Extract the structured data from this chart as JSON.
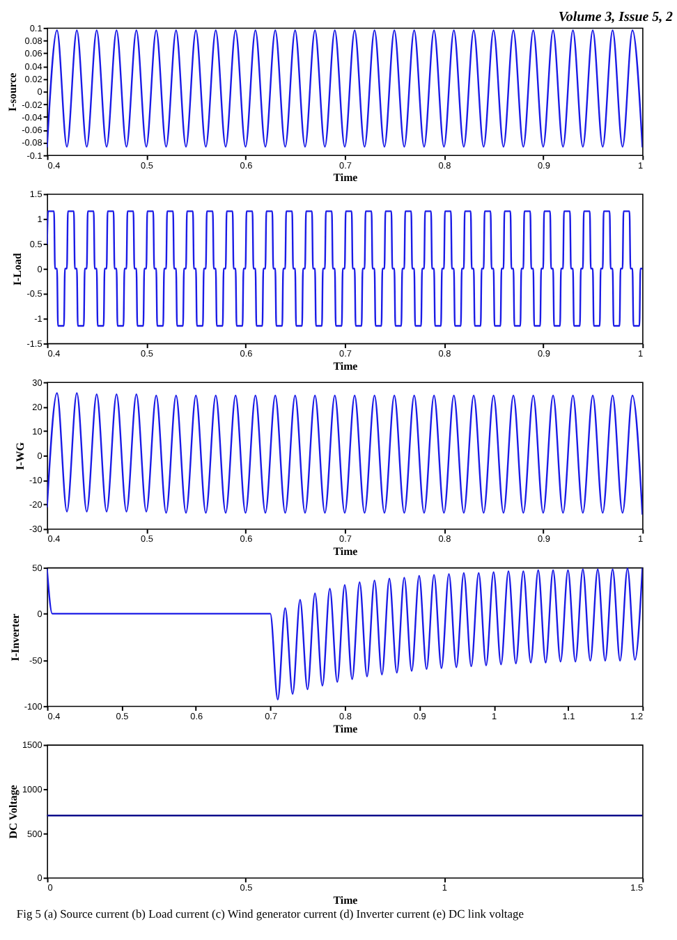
{
  "chart_data": [
    {
      "type": "line",
      "xlabel": "Time",
      "ylabel": "I-source",
      "xlim": [
        0.4,
        1
      ],
      "xticks": [
        0.4,
        0.5,
        0.6,
        0.7,
        0.8,
        0.9,
        1
      ],
      "ylim": [
        -0.1,
        0.1
      ],
      "yticks": [
        0.1,
        0.08,
        0.06,
        0.04,
        0.02,
        0,
        -0.02,
        -0.04,
        -0.06,
        -0.08,
        -0.1
      ],
      "x": [
        0.4,
        0.41,
        0.42,
        0.43,
        0.44,
        0.45,
        0.46,
        0.47,
        0.48,
        0.49,
        0.5,
        0.51,
        0.52,
        0.53,
        0.54,
        0.55,
        0.56,
        0.57,
        0.58,
        0.59,
        0.6,
        0.61,
        0.62,
        0.63,
        0.64,
        0.65,
        0.66,
        0.67,
        0.68,
        0.69,
        0.7,
        0.71,
        0.72,
        0.73,
        0.74,
        0.75,
        0.76,
        0.77,
        0.78,
        0.79,
        0.8,
        0.81,
        0.82,
        0.83,
        0.84,
        0.85,
        0.86,
        0.87,
        0.88,
        0.89,
        0.9,
        0.91,
        0.92,
        0.93,
        0.94,
        0.95,
        0.96,
        0.97,
        0.98,
        0.99,
        1.0
      ],
      "series": [
        {
          "color": "#1a1ae6",
          "values": [
            -0.087,
            0.096,
            -0.087,
            0.096,
            -0.087,
            0.096,
            -0.087,
            0.096,
            -0.087,
            0.096,
            -0.087,
            0.096,
            -0.087,
            0.096,
            -0.087,
            0.096,
            -0.087,
            0.096,
            -0.087,
            0.096,
            -0.087,
            0.096,
            -0.087,
            0.096,
            -0.087,
            0.096,
            -0.087,
            0.096,
            -0.087,
            0.096,
            -0.087,
            0.096,
            -0.087,
            0.096,
            -0.087,
            0.096,
            -0.087,
            0.096,
            -0.087,
            0.096,
            -0.087,
            0.096,
            -0.087,
            0.096,
            -0.087,
            0.096,
            -0.087,
            0.096,
            -0.087,
            0.096,
            -0.087,
            0.096,
            -0.087,
            0.096,
            -0.087,
            0.096,
            -0.087,
            0.096,
            -0.087,
            0.096,
            -0.087
          ]
        }
      ],
      "annotations": [
        "Volume 3, Issue 5, 2"
      ]
    },
    {
      "type": "line",
      "xlabel": "Time",
      "ylabel": "I-Load",
      "xlim": [
        0.4,
        1
      ],
      "xticks": [
        0.4,
        0.5,
        0.6,
        0.7,
        0.8,
        0.9,
        1
      ],
      "ylim": [
        -1.5,
        1.5
      ],
      "yticks": [
        1.5,
        1,
        0.5,
        0,
        -0.5,
        -1,
        -1.5
      ],
      "x": [
        0.4,
        0.401,
        0.407,
        0.408,
        0.41,
        0.411,
        0.417,
        0.418,
        0.42,
        0.421,
        0.427,
        0.428,
        0.43,
        0.431,
        0.437,
        0.438,
        0.44,
        0.441,
        0.447,
        0.448,
        0.45,
        0.451,
        0.457,
        0.458,
        0.46,
        0.461,
        0.467,
        0.468,
        0.47,
        0.471,
        0.477,
        0.478,
        0.48,
        0.481,
        0.487,
        0.488,
        0.49,
        0.491,
        0.497,
        0.498,
        0.5,
        0.501,
        0.507,
        0.508,
        0.51,
        0.511,
        0.517,
        0.518,
        0.52,
        0.521,
        0.527,
        0.528,
        0.53,
        0.531,
        0.537,
        0.538,
        0.54,
        0.541,
        0.547,
        0.548,
        0.55,
        0.551,
        0.557,
        0.558,
        0.56,
        0.561,
        0.567,
        0.568,
        0.57,
        0.571,
        0.577,
        0.578,
        0.58,
        0.581,
        0.587,
        0.588,
        0.59,
        0.591,
        0.597,
        0.598,
        0.6,
        0.601,
        0.607,
        0.608,
        0.61,
        0.611,
        0.617,
        0.618,
        0.62,
        0.621,
        0.627,
        0.628,
        0.63,
        0.631,
        0.637,
        0.638,
        0.64,
        0.641,
        0.647,
        0.648,
        0.65,
        0.651,
        0.657,
        0.658,
        0.66,
        0.661,
        0.667,
        0.668,
        0.67,
        0.671,
        0.677,
        0.678,
        0.68,
        0.681,
        0.687,
        0.688,
        0.69,
        0.691,
        0.697,
        0.698,
        0.7,
        0.701,
        0.707,
        0.708,
        0.71,
        0.711,
        0.717,
        0.718,
        0.72,
        0.721,
        0.727,
        0.728,
        0.73,
        0.731,
        0.737,
        0.738,
        0.74,
        0.741,
        0.747,
        0.748,
        0.75,
        0.751,
        0.757,
        0.758,
        0.76,
        0.761,
        0.767,
        0.768,
        0.77,
        0.771,
        0.777,
        0.778,
        0.78,
        0.781,
        0.787,
        0.788,
        0.79,
        0.791,
        0.797,
        0.798,
        0.8,
        0.801,
        0.807,
        0.808,
        0.81,
        0.811,
        0.817,
        0.818,
        0.82,
        0.821,
        0.827,
        0.828,
        0.83,
        0.831,
        0.837,
        0.838,
        0.84,
        0.841,
        0.847,
        0.848,
        0.85,
        0.851,
        0.857,
        0.858,
        0.86,
        0.861,
        0.867,
        0.868,
        0.87,
        0.871,
        0.877,
        0.878,
        0.88,
        0.881,
        0.887,
        0.888,
        0.89,
        0.891,
        0.897,
        0.898,
        0.9,
        0.901,
        0.907,
        0.908,
        0.91,
        0.911,
        0.917,
        0.918,
        0.92,
        0.921,
        0.927,
        0.928,
        0.93,
        0.931,
        0.937,
        0.938,
        0.94,
        0.941,
        0.947,
        0.948,
        0.95,
        0.951,
        0.957,
        0.958,
        0.96,
        0.961,
        0.967,
        0.968,
        0.97,
        0.971,
        0.977,
        0.978,
        0.98,
        0.981,
        0.987,
        0.988,
        0.99,
        0.991,
        0.997,
        0.998,
        1.0
      ],
      "series": [
        {
          "color": "#1a1ae6",
          "values": [
            0.5,
            1.15,
            1.15,
            0,
            0,
            -1.15,
            -1.15,
            0,
            0,
            1.15,
            1.15,
            0,
            0,
            -1.15,
            -1.15,
            0,
            0,
            1.15,
            1.15,
            0,
            0,
            -1.15,
            -1.15,
            0,
            0,
            1.15,
            1.15,
            0,
            0,
            -1.15,
            -1.15,
            0,
            0,
            1.15,
            1.15,
            0,
            0,
            -1.15,
            -1.15,
            0,
            0,
            1.15,
            1.15,
            0,
            0,
            -1.15,
            -1.15,
            0,
            0,
            1.15,
            1.15,
            0,
            0,
            -1.15,
            -1.15,
            0,
            0,
            1.15,
            1.15,
            0,
            0,
            -1.15,
            -1.15,
            0,
            0,
            1.15,
            1.15,
            0,
            0,
            -1.15,
            -1.15,
            0,
            0,
            1.15,
            1.15,
            0,
            0,
            -1.15,
            -1.15,
            0,
            0,
            1.15,
            1.15,
            0,
            0,
            -1.15,
            -1.15,
            0,
            0,
            1.15,
            1.15,
            0,
            0,
            -1.15,
            -1.15,
            0,
            0,
            1.15,
            1.15,
            0,
            0,
            -1.15,
            -1.15,
            0,
            0,
            1.15,
            1.15,
            0,
            0,
            -1.15,
            -1.15,
            0,
            0,
            1.15,
            1.15,
            0,
            0,
            -1.15,
            -1.15,
            0,
            0,
            1.15,
            1.15,
            0,
            0,
            -1.15,
            -1.15,
            0,
            0,
            1.15,
            1.15,
            0,
            0,
            -1.15,
            -1.15,
            0,
            0,
            1.15,
            1.15,
            0,
            0,
            -1.15,
            -1.15,
            0,
            0,
            1.15,
            1.15,
            0,
            0,
            -1.15,
            -1.15,
            0,
            0,
            1.15,
            1.15,
            0,
            0,
            -1.15,
            -1.15,
            0,
            0,
            1.15,
            1.15,
            0,
            0,
            -1.15,
            -1.15,
            0,
            0,
            1.15,
            1.15,
            0,
            0,
            -1.15,
            -1.15,
            0,
            0,
            1.15,
            1.15,
            0,
            0,
            -1.15,
            -1.15,
            0,
            0,
            1.15,
            1.15,
            0,
            0,
            -1.15,
            -1.15,
            0,
            0,
            1.15,
            1.15,
            0,
            0,
            -1.15,
            -1.15,
            0,
            0,
            1.15,
            1.15,
            0,
            0,
            -1.15,
            -1.15,
            0,
            0,
            1.15,
            1.15,
            0,
            0,
            -1.15,
            -1.15,
            0,
            0,
            1.15,
            1.15,
            0,
            0,
            -1.15,
            -1.15,
            0,
            0,
            1.15,
            1.15,
            0,
            0,
            -1.15,
            -1.15,
            0,
            0,
            1.15,
            1.15,
            0,
            0,
            -1.15,
            -1.15,
            0,
            0
          ]
        }
      ]
    },
    {
      "type": "line",
      "xlabel": "Time",
      "ylabel": "I-WG",
      "xlim": [
        0.4,
        1
      ],
      "xticks": [
        0.4,
        0.5,
        0.6,
        0.7,
        0.8,
        0.9,
        1
      ],
      "ylim": [
        -30,
        30
      ],
      "yticks": [
        30,
        20,
        10,
        0,
        -10,
        -20,
        -30
      ],
      "x": [
        0.4,
        0.41,
        0.42,
        0.43,
        0.44,
        0.45,
        0.46,
        0.47,
        0.48,
        0.49,
        0.5,
        0.51,
        0.52,
        0.53,
        0.54,
        0.55,
        0.56,
        0.57,
        0.58,
        0.59,
        0.6,
        0.61,
        0.62,
        0.63,
        0.64,
        0.65,
        0.66,
        0.67,
        0.68,
        0.69,
        0.7,
        0.71,
        0.72,
        0.73,
        0.74,
        0.75,
        0.76,
        0.77,
        0.78,
        0.79,
        0.8,
        0.81,
        0.82,
        0.83,
        0.84,
        0.85,
        0.86,
        0.87,
        0.88,
        0.89,
        0.9,
        0.91,
        0.92,
        0.93,
        0.94,
        0.95,
        0.96,
        0.97,
        0.98,
        0.99,
        1.0
      ],
      "series": [
        {
          "color": "#1a1ae6",
          "values": [
            -21,
            25.5,
            -23,
            25.5,
            -23,
            25,
            -23,
            25,
            -23,
            25,
            -23,
            24.5,
            -23.5,
            24.5,
            -23.5,
            24.5,
            -23.5,
            24.5,
            -23.5,
            24.5,
            -23.5,
            24.5,
            -23.5,
            24.5,
            -23.5,
            24.5,
            -23.5,
            24.5,
            -23.5,
            24.5,
            -23.5,
            24.5,
            -23.5,
            24.5,
            -23.5,
            24.5,
            -23.5,
            24.5,
            -23.5,
            24.5,
            -23.5,
            24.5,
            -23.5,
            24.5,
            -23.5,
            24.5,
            -23.5,
            24.5,
            -23.5,
            24.5,
            -23.5,
            24.5,
            -23.5,
            24.5,
            -23.5,
            24.5,
            -23.5,
            24.5,
            -23.5,
            24.5,
            -24
          ]
        }
      ]
    },
    {
      "type": "line",
      "xlabel": "Time",
      "ylabel": "I-Inverter",
      "xlim": [
        0.4,
        1.2
      ],
      "xticks": [
        0.4,
        0.5,
        0.6,
        0.7,
        0.8,
        0.9,
        1,
        1.1,
        1.2
      ],
      "ylim": [
        -100,
        50
      ],
      "yticks": [
        50,
        0,
        -50,
        -100
      ],
      "x": [
        0.4,
        0.407,
        0.7,
        0.71,
        0.72,
        0.73,
        0.74,
        0.75,
        0.76,
        0.77,
        0.78,
        0.79,
        0.8,
        0.81,
        0.82,
        0.83,
        0.84,
        0.85,
        0.86,
        0.87,
        0.88,
        0.89,
        0.9,
        0.91,
        0.92,
        0.93,
        0.94,
        0.95,
        0.96,
        0.97,
        0.98,
        0.99,
        1.0,
        1.01,
        1.02,
        1.03,
        1.04,
        1.05,
        1.06,
        1.07,
        1.08,
        1.09,
        1.1,
        1.11,
        1.12,
        1.13,
        1.14,
        1.15,
        1.16,
        1.17,
        1.18,
        1.19,
        1.2
      ],
      "series": [
        {
          "color": "#1a1ae6",
          "values": [
            48,
            0,
            0,
            -93,
            6,
            -87,
            15,
            -82,
            22,
            -78,
            27,
            -74,
            31,
            -71,
            34,
            -68,
            36,
            -66,
            38,
            -64,
            39,
            -62,
            41,
            -60,
            42,
            -59,
            43,
            -58,
            44,
            -57,
            44,
            -56,
            45,
            -55,
            46,
            -54,
            46,
            -53,
            47,
            -53,
            47,
            -52,
            47,
            -52,
            48,
            -51,
            48,
            -51,
            48,
            -51,
            49,
            -50,
            49
          ]
        }
      ]
    },
    {
      "type": "line",
      "xlabel": "Time",
      "ylabel": "DC Voltage",
      "xlim": [
        0,
        1.5
      ],
      "xticks": [
        0,
        0.5,
        1,
        1.5
      ],
      "ylim": [
        0,
        1500
      ],
      "yticks": [
        0,
        500,
        1000,
        1500
      ],
      "x": [
        0,
        1.5
      ],
      "series": [
        {
          "color": "#0a0a8c",
          "values": [
            700,
            700
          ]
        }
      ],
      "annotations": [
        "Fig 5 (a) Source current   (b) Load current   (c) Wind generator current   (d) Inverter current   (e) DC link voltage"
      ]
    }
  ]
}
